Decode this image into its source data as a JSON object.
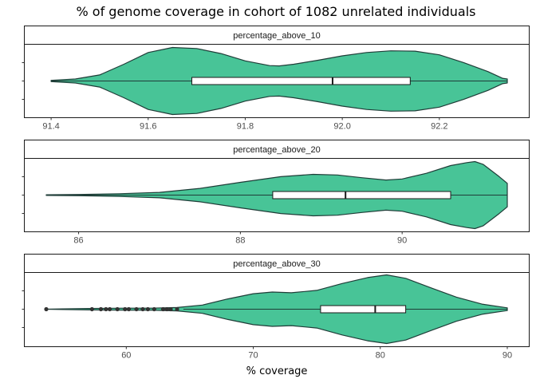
{
  "chart_data": {
    "type": "violin",
    "title": "% of genome coverage in cohort of 1082 unrelated individuals",
    "xlabel": "% coverage",
    "ylabel": "",
    "colors": {
      "fill": "#48c497",
      "outline": "#1f3d38",
      "box_fill": "#ffffff",
      "box_line": "#1a1a1a",
      "outlier": "#333333"
    },
    "panels": [
      {
        "strip": "percentage_above_10",
        "xlim": [
          91.39,
          92.34
        ],
        "xticks": [
          91.4,
          91.6,
          91.8,
          92.0,
          92.2
        ],
        "xtick_labels": [
          "91.4",
          "91.6",
          "91.8",
          "92.0",
          "92.2"
        ],
        "density": [
          [
            91.4,
            0.02
          ],
          [
            91.45,
            0.06
          ],
          [
            91.5,
            0.18
          ],
          [
            91.55,
            0.5
          ],
          [
            91.6,
            0.85
          ],
          [
            91.65,
            1.0
          ],
          [
            91.7,
            0.97
          ],
          [
            91.75,
            0.82
          ],
          [
            91.8,
            0.6
          ],
          [
            91.85,
            0.46
          ],
          [
            91.87,
            0.45
          ],
          [
            91.9,
            0.5
          ],
          [
            91.95,
            0.62
          ],
          [
            92.0,
            0.75
          ],
          [
            92.05,
            0.85
          ],
          [
            92.1,
            0.9
          ],
          [
            92.15,
            0.89
          ],
          [
            92.2,
            0.78
          ],
          [
            92.25,
            0.55
          ],
          [
            92.3,
            0.28
          ],
          [
            92.33,
            0.08
          ],
          [
            92.34,
            0.06
          ]
        ],
        "box": {
          "min": 91.4,
          "q1": 91.69,
          "median": 91.98,
          "q3": 92.14,
          "max": 92.34
        },
        "outliers": []
      },
      {
        "strip": "percentage_above_20",
        "xlim": [
          85.6,
          91.3
        ],
        "xticks": [
          86,
          88,
          90
        ],
        "xtick_labels": [
          "86",
          "88",
          "90"
        ],
        "density": [
          [
            85.6,
            0.01
          ],
          [
            86.0,
            0.02
          ],
          [
            86.5,
            0.04
          ],
          [
            87.0,
            0.08
          ],
          [
            87.5,
            0.2
          ],
          [
            88.0,
            0.38
          ],
          [
            88.5,
            0.55
          ],
          [
            88.9,
            0.62
          ],
          [
            89.2,
            0.6
          ],
          [
            89.5,
            0.52
          ],
          [
            89.8,
            0.45
          ],
          [
            90.0,
            0.48
          ],
          [
            90.3,
            0.65
          ],
          [
            90.6,
            0.88
          ],
          [
            90.8,
            0.97
          ],
          [
            90.9,
            1.0
          ],
          [
            91.0,
            0.92
          ],
          [
            91.2,
            0.55
          ],
          [
            91.3,
            0.35
          ]
        ],
        "box": {
          "min": 85.6,
          "q1": 88.4,
          "median": 89.3,
          "q3": 90.6,
          "max": 91.3
        },
        "outliers": []
      },
      {
        "strip": "percentage_above_30",
        "xlim": [
          53.7,
          90.0
        ],
        "xticks": [
          60,
          70,
          80,
          90
        ],
        "xtick_labels": [
          "60",
          "70",
          "80",
          "90"
        ],
        "density": [
          [
            53.7,
            0.0
          ],
          [
            55.0,
            0.01
          ],
          [
            57.0,
            0.02
          ],
          [
            60.0,
            0.03
          ],
          [
            62.0,
            0.03
          ],
          [
            64.0,
            0.05
          ],
          [
            66.0,
            0.12
          ],
          [
            68.0,
            0.3
          ],
          [
            70.0,
            0.45
          ],
          [
            71.5,
            0.5
          ],
          [
            73.0,
            0.48
          ],
          [
            75.0,
            0.55
          ],
          [
            77.0,
            0.75
          ],
          [
            79.0,
            0.92
          ],
          [
            80.5,
            1.0
          ],
          [
            82.0,
            0.9
          ],
          [
            84.0,
            0.62
          ],
          [
            86.0,
            0.35
          ],
          [
            88.0,
            0.15
          ],
          [
            90.0,
            0.04
          ]
        ],
        "box": {
          "min": 64.5,
          "q1": 75.3,
          "median": 79.6,
          "q3": 82.0,
          "max": 90.0
        },
        "outliers": [
          53.7,
          57.3,
          58.0,
          58.4,
          58.7,
          59.3,
          59.9,
          60.2,
          60.8,
          61.3,
          61.7,
          62.2,
          62.9,
          63.2,
          63.5,
          64.0
        ]
      }
    ]
  }
}
